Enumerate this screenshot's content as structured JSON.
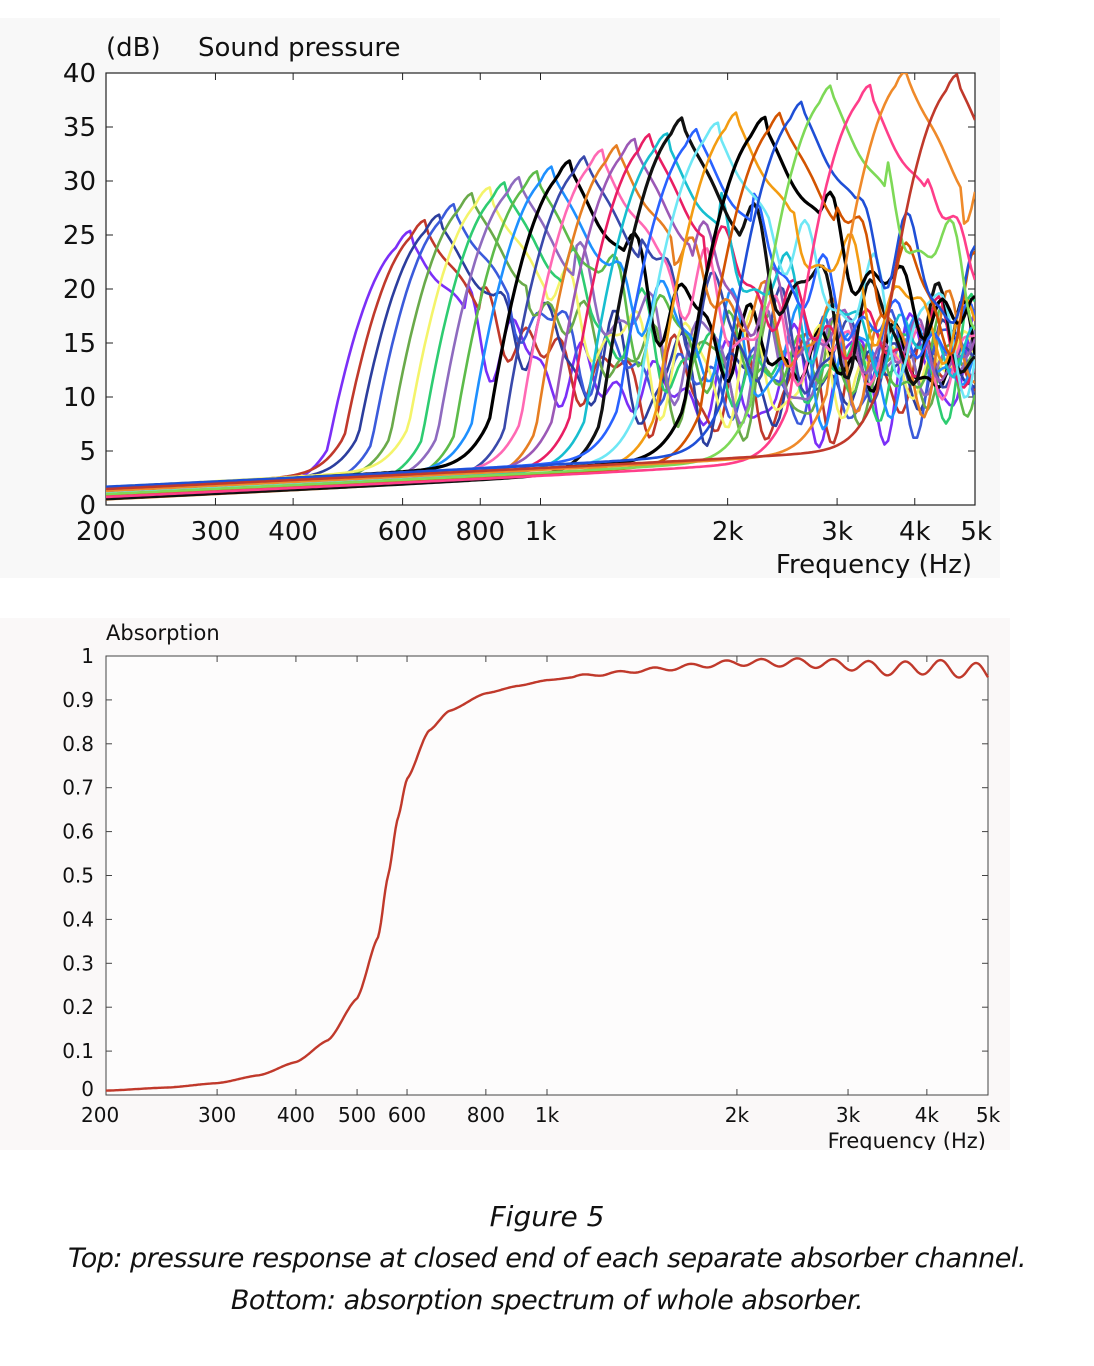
{
  "chart_data": [
    {
      "type": "line",
      "title": "Sound pressure",
      "ylabel": "(dB)",
      "xlabel": "Frequency  (Hz)",
      "xscale": "log",
      "xlim": [
        200,
        5000
      ],
      "ylim": [
        0,
        40
      ],
      "grid": false,
      "y_ticks": [
        0,
        5,
        10,
        15,
        20,
        25,
        30,
        35,
        40
      ],
      "x_ticks": [
        {
          "value": 200,
          "label": "200"
        },
        {
          "value": 300,
          "label": "300"
        },
        {
          "value": 400,
          "label": "400"
        },
        {
          "value": 600,
          "label": "600"
        },
        {
          "value": 800,
          "label": "800"
        },
        {
          "value": 1000,
          "label": "1k"
        },
        {
          "value": 2000,
          "label": "2k"
        },
        {
          "value": 3000,
          "label": "3k"
        },
        {
          "value": 4000,
          "label": "4k"
        },
        {
          "value": 5000,
          "label": "5k"
        }
      ],
      "series_peaks": [
        {
          "peak_hz": 620,
          "peak_db": 24.5,
          "color": "#7b2ff7"
        },
        {
          "peak_hz": 655,
          "peak_db": 25.5,
          "color": "#c0392b"
        },
        {
          "peak_hz": 690,
          "peak_db": 26.0,
          "color": "#2c3e9e"
        },
        {
          "peak_hz": 730,
          "peak_db": 27.0,
          "color": "#3b5bdb"
        },
        {
          "peak_hz": 780,
          "peak_db": 28.0,
          "color": "#6aaa4a"
        },
        {
          "peak_hz": 830,
          "peak_db": 28.5,
          "color": "#f4f46a"
        },
        {
          "peak_hz": 880,
          "peak_db": 29.0,
          "color": "#2ecc71"
        },
        {
          "peak_hz": 930,
          "peak_db": 29.5,
          "color": "#8e6bbf"
        },
        {
          "peak_hz": 990,
          "peak_db": 30.0,
          "color": "#5dbb4a"
        },
        {
          "peak_hz": 1050,
          "peak_db": 30.5,
          "color": "#1e90ff"
        },
        {
          "peak_hz": 1120,
          "peak_db": 31.0,
          "color": "#000000"
        },
        {
          "peak_hz": 1190,
          "peak_db": 31.5,
          "color": "#3949ab"
        },
        {
          "peak_hz": 1260,
          "peak_db": 32.0,
          "color": "#ff69b4"
        },
        {
          "peak_hz": 1340,
          "peak_db": 32.5,
          "color": "#e67e22"
        },
        {
          "peak_hz": 1420,
          "peak_db": 33.0,
          "color": "#9b59b6"
        },
        {
          "peak_hz": 1510,
          "peak_db": 33.5,
          "color": "#e91e63"
        },
        {
          "peak_hz": 1600,
          "peak_db": 33.5,
          "color": "#17becf"
        },
        {
          "peak_hz": 1700,
          "peak_db": 35.0,
          "color": "#111111"
        },
        {
          "peak_hz": 1800,
          "peak_db": 34.0,
          "color": "#2962ff"
        },
        {
          "peak_hz": 1930,
          "peak_db": 34.5,
          "color": "#6ee7f5"
        },
        {
          "peak_hz": 2080,
          "peak_db": 35.5,
          "color": "#f39c12"
        },
        {
          "peak_hz": 2300,
          "peak_db": 35.0,
          "color": "#000000"
        },
        {
          "peak_hz": 2450,
          "peak_db": 35.5,
          "color": "#d35400"
        },
        {
          "peak_hz": 2650,
          "peak_db": 36.5,
          "color": "#1f4fd6"
        },
        {
          "peak_hz": 2950,
          "peak_db": 38.0,
          "color": "#7ed957"
        },
        {
          "peak_hz": 3400,
          "peak_db": 38.0,
          "color": "#ff3e8a"
        },
        {
          "peak_hz": 3900,
          "peak_db": 39.5,
          "color": "#ef8a2a"
        },
        {
          "peak_hz": 4700,
          "peak_db": 39.0,
          "color": "#c0392b"
        }
      ]
    },
    {
      "type": "line",
      "title": "Absorption",
      "xlabel": "Frequency  (Hz)",
      "xscale": "log",
      "xlim": [
        200,
        5000
      ],
      "ylim": [
        0,
        1
      ],
      "grid": false,
      "color": "#c0392b",
      "y_ticks": [
        {
          "value": 0,
          "label": "0"
        },
        {
          "value": 0.1,
          "label": "0.1"
        },
        {
          "value": 0.2,
          "label": "0.2"
        },
        {
          "value": 0.3,
          "label": "0.3"
        },
        {
          "value": 0.4,
          "label": "0.4"
        },
        {
          "value": 0.5,
          "label": "0.5"
        },
        {
          "value": 0.6,
          "label": "0.6"
        },
        {
          "value": 0.7,
          "label": "0.7"
        },
        {
          "value": 0.8,
          "label": "0.8"
        },
        {
          "value": 0.9,
          "label": "0.9"
        },
        {
          "value": 1,
          "label": "1"
        }
      ],
      "x_ticks": [
        {
          "value": 200,
          "label": "200"
        },
        {
          "value": 300,
          "label": "300"
        },
        {
          "value": 400,
          "label": "400"
        },
        {
          "value": 500,
          "label": "500"
        },
        {
          "value": 600,
          "label": "600"
        },
        {
          "value": 800,
          "label": "800"
        },
        {
          "value": 1000,
          "label": "1k"
        },
        {
          "value": 2000,
          "label": "2k"
        },
        {
          "value": 3000,
          "label": "3k"
        },
        {
          "value": 4000,
          "label": "4k"
        },
        {
          "value": 5000,
          "label": "5k"
        }
      ],
      "points": [
        [
          200,
          0.01
        ],
        [
          250,
          0.017
        ],
        [
          300,
          0.027
        ],
        [
          350,
          0.045
        ],
        [
          400,
          0.075
        ],
        [
          450,
          0.125
        ],
        [
          500,
          0.22
        ],
        [
          540,
          0.36
        ],
        [
          560,
          0.5
        ],
        [
          580,
          0.63
        ],
        [
          600,
          0.72
        ],
        [
          650,
          0.83
        ],
        [
          700,
          0.875
        ],
        [
          800,
          0.915
        ],
        [
          900,
          0.932
        ],
        [
          1000,
          0.945
        ],
        [
          1200,
          0.958
        ],
        [
          1500,
          0.97
        ],
        [
          1800,
          0.98
        ],
        [
          2000,
          0.985
        ],
        [
          2500,
          0.985
        ],
        [
          3000,
          0.98
        ],
        [
          3500,
          0.97
        ],
        [
          4000,
          0.975
        ],
        [
          4500,
          0.97
        ],
        [
          5000,
          0.96
        ]
      ],
      "ripple_start_hz": 1100
    }
  ],
  "caption": {
    "title": "Figure 5",
    "line1": "Top: pressure response at closed end of each separate absorber channel.",
    "line2": "Bottom: absorption spectrum of whole absorber."
  }
}
